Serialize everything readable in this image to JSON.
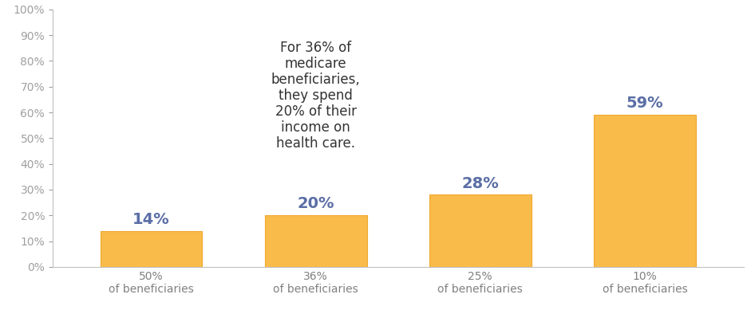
{
  "chart_data": {
    "type": "bar",
    "categories": [
      "50%\nof beneficiaries",
      "36%\nof beneficiaries",
      "25%\nof beneficiaries",
      "10%\nof beneficiaries"
    ],
    "values": [
      14,
      20,
      28,
      59
    ],
    "value_labels": [
      "14%",
      "20%",
      "28%",
      "59%"
    ],
    "data_labels": true,
    "color": "#f9bc4a",
    "ylim": [
      0,
      100
    ],
    "yticks": [
      {
        "value": 0,
        "label": "0%"
      },
      {
        "value": 10,
        "label": "10%"
      },
      {
        "value": 20,
        "label": "20%"
      },
      {
        "value": 30,
        "label": "30%"
      },
      {
        "value": 40,
        "label": "40%"
      },
      {
        "value": 50,
        "label": "50%"
      },
      {
        "value": 60,
        "label": "60%"
      },
      {
        "value": 70,
        "label": "70%"
      },
      {
        "value": 80,
        "label": "80%"
      },
      {
        "value": 90,
        "label": "90%"
      },
      {
        "value": 100,
        "label": "100%"
      }
    ],
    "grid": false,
    "annotations": [
      "For 36% of\nmedicare\nbeneficiaries,\nthey spend\n20% of their\nincome on\nhealth care."
    ]
  }
}
